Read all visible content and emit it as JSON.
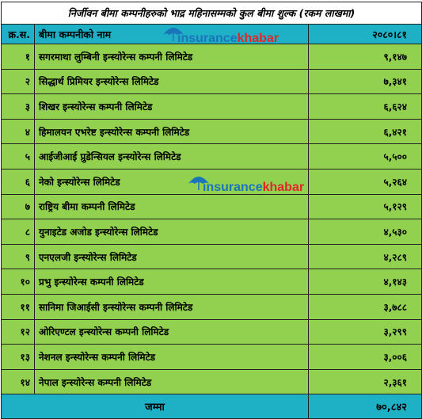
{
  "table": {
    "title": "निर्जीवन बीमा कम्पनीहरुको भाद्र महिनासम्मको कुल बीमा शुल्क (रकम लाखमा)",
    "header": {
      "sn": "क्र.स.",
      "name": "बीमा कम्पनीको नाम",
      "year": "२०८०।८१"
    },
    "rows": [
      {
        "sn": "१",
        "name": "सगरमाथा लुम्बिनी इन्स्योरेन्स कम्पनी लिमिटेड",
        "value": "९,१४७"
      },
      {
        "sn": "२",
        "name": "सिद्धार्थ प्रिमियर इन्स्योरेन्स लिमिटेड",
        "value": "७,३४१"
      },
      {
        "sn": "३",
        "name": "शिखर इन्स्योरेन्स कम्पनी लिमिटेड",
        "value": "६,६२४"
      },
      {
        "sn": "४",
        "name": "हिमालयन एभरेष्ट इन्स्योरेन्स कम्पनी  लिमिटेड",
        "value": "६,४२१"
      },
      {
        "sn": "५",
        "name": "आईजीआई प्रुडेन्सियल इन्स्योरेन्स लिमिटेड",
        "value": "५,५००"
      },
      {
        "sn": "६",
        "name": "नेको इन्स्योरेन्स लिमिटेड",
        "value": "५,२६४"
      },
      {
        "sn": "७",
        "name": "राष्ट्रिय बीमा कम्पनी लिमिटेड",
        "value": "५,१२९"
      },
      {
        "sn": "८",
        "name": "युनाइटेड अजोड इन्स्योरेन्स लिमिटेड",
        "value": "४,५३०"
      },
      {
        "sn": "९",
        "name": "एनएलजी इन्स्योरेन्स लिमिटेड",
        "value": "४,२८९"
      },
      {
        "sn": "१०",
        "name": "प्रभु इन्स्योरेन्स कम्पनी लिमिटेड",
        "value": "४,१४३"
      },
      {
        "sn": "११",
        "name": "सानिमा जिआईसी इन्स्योरेन्स कम्पनी लिमिटेड",
        "value": "३,७८८"
      },
      {
        "sn": "१२",
        "name": "ओरिएण्टल इन्स्योरेन्स कम्पनी लिमिटेड",
        "value": "३,२९९"
      },
      {
        "sn": "१३",
        "name": "नेशनल इन्स्योरेन्स कम्पनी लिमिटेड",
        "value": "३,००६"
      },
      {
        "sn": "१४",
        "name": "नेपाल इन्स्योरेन्स कम्पनी लिमिटेड",
        "value": "२,३६१"
      }
    ],
    "total": {
      "label": "जम्मा",
      "value": "७०,८४२"
    }
  },
  "watermark": {
    "part1": "insurance",
    "part2": "khabar"
  },
  "colors": {
    "row_bg": "#92d050",
    "header_bg": "#1eb0c4",
    "logo_blue": "#1a75bb",
    "logo_red": "#e3262b"
  }
}
